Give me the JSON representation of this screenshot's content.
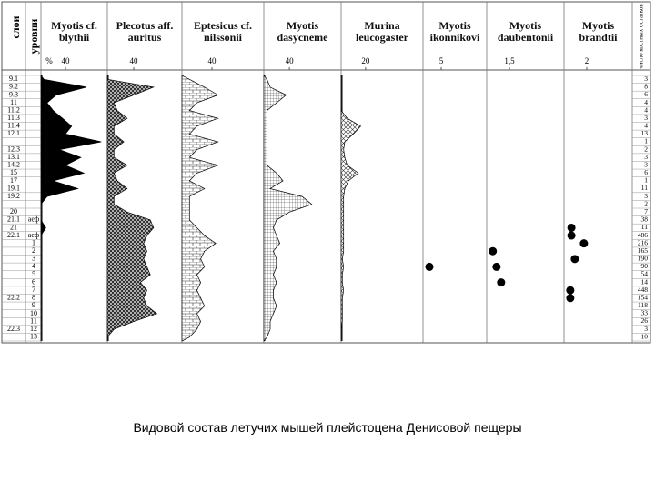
{
  "chart_data": {
    "type": "strat",
    "caption": "Видовой состав летучих мышей плейстоцена Денисовой пещеры",
    "layer_label": "слои",
    "level_label": "уровни",
    "unit_label": "%",
    "count_label": "число костных остатков",
    "layers": [
      "9.1",
      "9.2",
      "9.3",
      "11",
      "11.2",
      "11.3",
      "11.4",
      "12.1",
      null,
      "12.3",
      "13.1",
      "14.2",
      "15",
      "17",
      "19.1",
      "19.2",
      null,
      "20",
      "21.1",
      "21",
      "22.1",
      null,
      null,
      null,
      null,
      null,
      null,
      null,
      "22.2",
      null,
      null,
      null,
      "22.3",
      null
    ],
    "levels": [
      null,
      null,
      null,
      null,
      null,
      null,
      null,
      null,
      null,
      null,
      null,
      null,
      null,
      null,
      null,
      null,
      null,
      null,
      "аеф",
      null,
      "аеф",
      "1",
      "2",
      "3",
      "4",
      "5",
      "6",
      "7",
      "8",
      "9",
      "10",
      "11",
      "12",
      "13"
    ],
    "counts": [
      3,
      8,
      6,
      4,
      4,
      3,
      4,
      13,
      1,
      2,
      3,
      3,
      6,
      1,
      11,
      3,
      2,
      7,
      38,
      11,
      486,
      216,
      165,
      190,
      90,
      54,
      14,
      448,
      154,
      118,
      33,
      26,
      3,
      10
    ],
    "series": [
      {
        "name": "Myotis cf. blythii",
        "style": "solid",
        "xlim": [
          0,
          108
        ],
        "xtick": 40,
        "values": [
          5,
          74,
          25,
          10,
          20,
          35,
          50,
          40,
          98,
          30,
          65,
          40,
          70,
          20,
          60,
          10,
          0,
          0,
          0,
          8,
          0,
          0,
          0,
          0,
          0,
          0,
          0,
          0,
          0,
          0,
          0,
          0,
          0,
          0
        ]
      },
      {
        "name": "Plecotus aff. auritus",
        "style": "dense",
        "xlim": [
          0,
          113
        ],
        "xtick": 40,
        "values": [
          0,
          70,
          40,
          10,
          15,
          30,
          10,
          10,
          25,
          10,
          10,
          30,
          10,
          15,
          30,
          10,
          10,
          30,
          65,
          70,
          60,
          55,
          60,
          55,
          60,
          65,
          50,
          60,
          55,
          60,
          75,
          40,
          10,
          0
        ]
      },
      {
        "name": "Eptesicus cf. nilssonii",
        "style": "brick",
        "xlim": [
          0,
          109
        ],
        "xtick": 40,
        "values": [
          10,
          30,
          48,
          20,
          10,
          48,
          20,
          10,
          48,
          20,
          10,
          48,
          20,
          10,
          30,
          10,
          10,
          10,
          10,
          20,
          30,
          45,
          30,
          25,
          30,
          20,
          25,
          20,
          25,
          30,
          20,
          25,
          20,
          10
        ]
      },
      {
        "name": "Myotis dasycneme",
        "style": "grid",
        "xlim": [
          0,
          121
        ],
        "xtick": 40,
        "values": [
          5,
          10,
          35,
          20,
          5,
          5,
          5,
          5,
          5,
          5,
          5,
          5,
          20,
          30,
          10,
          60,
          75,
          40,
          20,
          15,
          20,
          25,
          15,
          20,
          20,
          15,
          20,
          15,
          15,
          20,
          15,
          10,
          10,
          5
        ]
      },
      {
        "name": "Murina leucogaster",
        "style": "cross",
        "xlim": [
          0,
          67
        ],
        "xtick": 20,
        "values": [
          0,
          0,
          0,
          0,
          0,
          5,
          16,
          10,
          3,
          2,
          3,
          5,
          14,
          6,
          3,
          2,
          2,
          2,
          2,
          2,
          2,
          2,
          2,
          1,
          2,
          1,
          1,
          2,
          1,
          1,
          1,
          1,
          0,
          0
        ]
      },
      {
        "name": "Myotis ikonnikovi",
        "style": "dots",
        "xlim": [
          0,
          17.5
        ],
        "xtick": 5,
        "values": [
          null,
          null,
          null,
          null,
          null,
          null,
          null,
          null,
          null,
          null,
          null,
          null,
          null,
          null,
          null,
          null,
          null,
          null,
          null,
          null,
          null,
          null,
          null,
          null,
          1.75,
          null,
          null,
          null,
          null,
          null,
          null,
          null,
          null,
          null
        ]
      },
      {
        "name": "Myotis daubentonii",
        "style": "dots",
        "xlim": [
          0,
          5.1
        ],
        "xtick": {
          "value": 1.5,
          "label": "1,5"
        },
        "values": [
          null,
          null,
          null,
          null,
          null,
          null,
          null,
          null,
          null,
          null,
          null,
          null,
          null,
          null,
          null,
          null,
          null,
          null,
          null,
          null,
          null,
          null,
          0.4,
          null,
          0.65,
          null,
          0.95,
          null,
          null,
          null,
          null,
          null,
          null,
          null
        ]
      },
      {
        "name": "Myotis brandtii",
        "style": "dots",
        "xlim": [
          0,
          6
        ],
        "xtick": 2,
        "values": [
          null,
          null,
          null,
          null,
          null,
          null,
          null,
          null,
          null,
          null,
          null,
          null,
          null,
          null,
          null,
          null,
          null,
          null,
          null,
          0.65,
          0.65,
          1.75,
          null,
          0.95,
          null,
          null,
          null,
          0.55,
          0.55,
          null,
          null,
          null,
          null,
          null
        ]
      }
    ]
  }
}
